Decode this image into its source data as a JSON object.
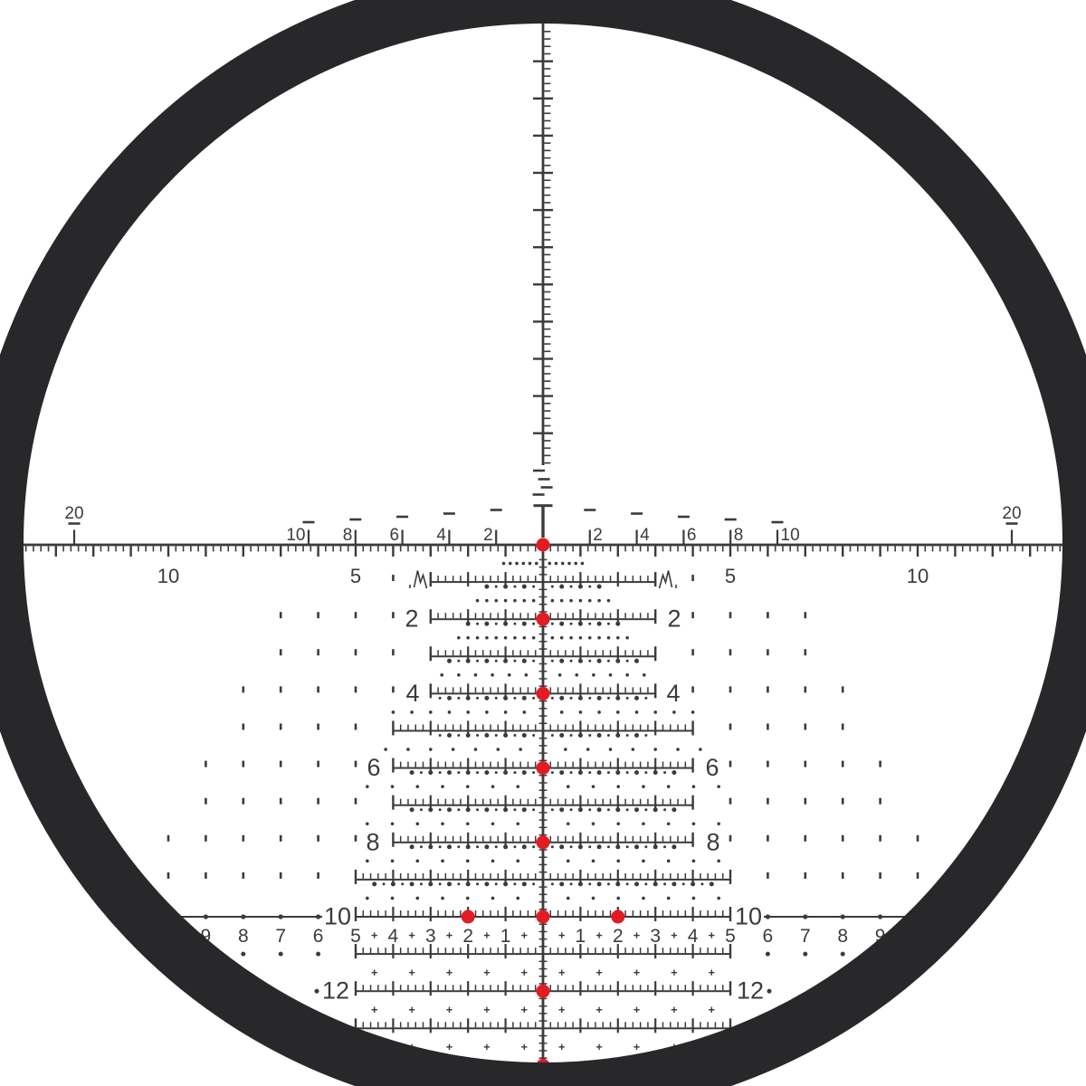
{
  "colors": {
    "mark": "#3b3b3b",
    "ring": "#28282b",
    "illuminated_dot": "#e31b23",
    "background": "#ffffff"
  },
  "fine_scale": {
    "left": [
      "20",
      "10",
      "8",
      "6",
      "4",
      "2"
    ],
    "right": [
      "2",
      "4",
      "6",
      "8",
      "10",
      "20"
    ]
  },
  "coarse_scale": {
    "left": [
      "10",
      "5"
    ],
    "right": [
      "5",
      "10"
    ]
  },
  "tree_labels": {
    "left": [
      "2",
      "4",
      "6",
      "8",
      "10",
      "12"
    ],
    "right": [
      "2",
      "4",
      "6",
      "8",
      "10",
      "12"
    ]
  },
  "wind_numbers": {
    "left": [
      "9",
      "8",
      "7",
      "6",
      "5",
      "4",
      "3",
      "2",
      "1"
    ],
    "right": [
      "1",
      "2",
      "3",
      "4",
      "5",
      "6",
      "7",
      "8",
      "9"
    ]
  },
  "illuminated_dots": {
    "count": 10
  }
}
